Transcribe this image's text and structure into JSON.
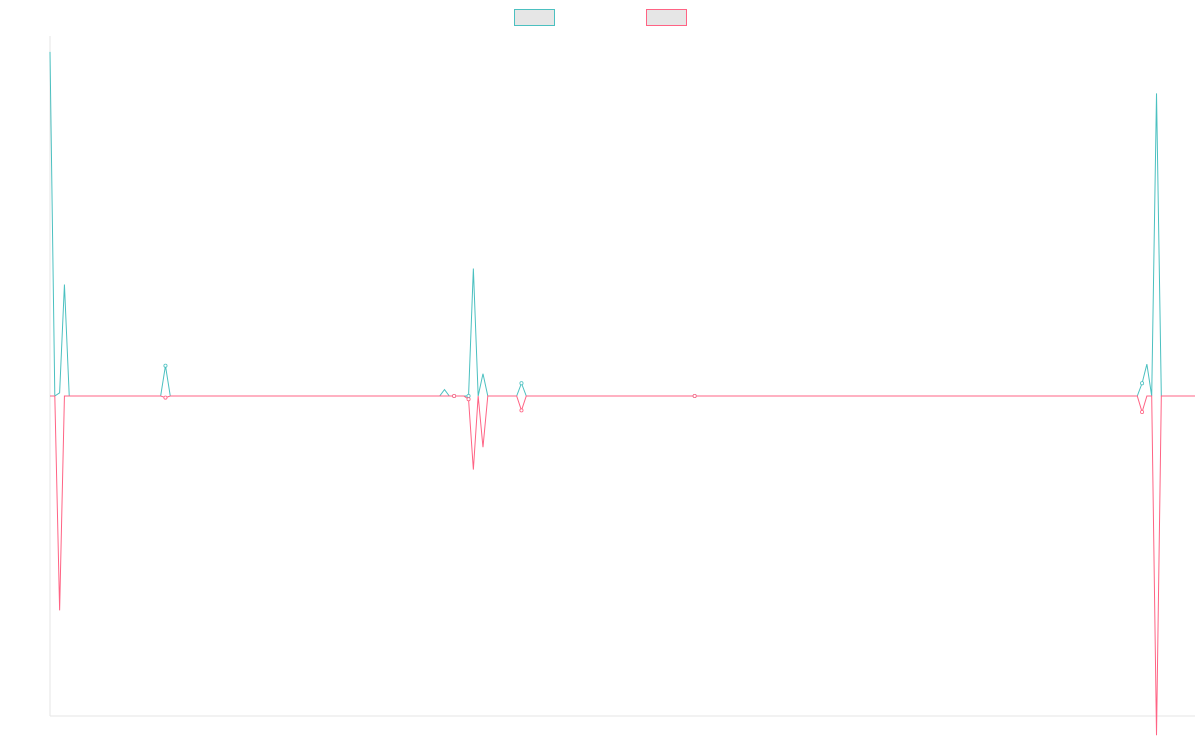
{
  "chart_data": {
    "type": "line",
    "title": "",
    "xlabel": "",
    "ylabel": "",
    "grid": false,
    "legend_position": "top-center",
    "ylim": [
      -1.0,
      1.13
    ],
    "x_count": 239,
    "series": [
      {
        "color": "#4bc0c0",
        "fill": "#e6e6e6",
        "points": [
          [
            0,
            1.08
          ],
          [
            1,
            0.0
          ],
          [
            2,
            0.01
          ],
          [
            3,
            0.35
          ],
          [
            4,
            0.0
          ],
          [
            23,
            0.0
          ],
          [
            24,
            0.095
          ],
          [
            25,
            0.0
          ],
          [
            81,
            0.0
          ],
          [
            82,
            0.02
          ],
          [
            83,
            0.0
          ],
          [
            84,
            0.0
          ],
          [
            86,
            0.0
          ],
          [
            87,
            0.0
          ],
          [
            88,
            0.4
          ],
          [
            89,
            0.0
          ],
          [
            90,
            0.07
          ],
          [
            91,
            0.0
          ],
          [
            97,
            0.0
          ],
          [
            98,
            0.04
          ],
          [
            99,
            0.0
          ],
          [
            133,
            0.0
          ],
          [
            134,
            0.0
          ],
          [
            135,
            0.0
          ],
          [
            226,
            0.0
          ],
          [
            227,
            0.04
          ],
          [
            228,
            0.1
          ],
          [
            229,
            0.0
          ],
          [
            230,
            0.95
          ],
          [
            231,
            0.0
          ],
          [
            238,
            0.0
          ]
        ]
      },
      {
        "color": "#ff6384",
        "fill": "#e6e6e6",
        "points": [
          [
            0,
            0.0
          ],
          [
            1,
            0.0
          ],
          [
            2,
            -0.67
          ],
          [
            3,
            0.0
          ],
          [
            4,
            0.0
          ],
          [
            23,
            0.0
          ],
          [
            24,
            -0.005
          ],
          [
            25,
            0.0
          ],
          [
            81,
            0.0
          ],
          [
            82,
            0.0
          ],
          [
            83,
            0.0
          ],
          [
            84,
            0.0
          ],
          [
            86,
            0.0
          ],
          [
            87,
            -0.01
          ],
          [
            88,
            -0.23
          ],
          [
            89,
            0.0
          ],
          [
            90,
            -0.16
          ],
          [
            91,
            0.0
          ],
          [
            97,
            0.0
          ],
          [
            98,
            -0.045
          ],
          [
            99,
            0.0
          ],
          [
            133,
            0.0
          ],
          [
            134,
            0.0
          ],
          [
            135,
            0.0
          ],
          [
            226,
            0.0
          ],
          [
            227,
            -0.05
          ],
          [
            228,
            0.0
          ],
          [
            229,
            0.0
          ],
          [
            230,
            -1.06
          ],
          [
            231,
            0.0
          ],
          [
            238,
            0.0
          ]
        ]
      }
    ]
  }
}
